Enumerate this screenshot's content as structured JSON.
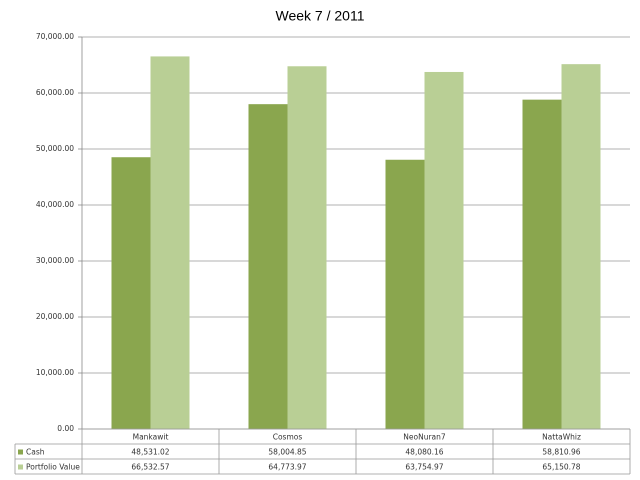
{
  "chart_data": {
    "type": "bar",
    "title": "Week 7 / 2011",
    "categories": [
      "Mankawit",
      "Cosmos",
      "NeoNuran7",
      "NattaWhiz"
    ],
    "series": [
      {
        "name": "Cash",
        "color": "#8aa64e",
        "values": [
          48531.02,
          58004.85,
          48080.16,
          58810.96
        ],
        "value_labels": [
          "48,531.02",
          "58,004.85",
          "48,080.16",
          "58,810.96"
        ]
      },
      {
        "name": "Portfolio Value",
        "color": "#b9cf95",
        "values": [
          66532.57,
          64773.97,
          63754.97,
          65150.78
        ],
        "value_labels": [
          "66,532.57",
          "64,773.97",
          "63,754.97",
          "65,150.78"
        ]
      }
    ],
    "ylim": [
      0,
      70000
    ],
    "yticks": [
      {
        "value": 0,
        "label": "0.00"
      },
      {
        "value": 10000,
        "label": "10,000.00"
      },
      {
        "value": 20000,
        "label": "20,000.00"
      },
      {
        "value": 30000,
        "label": "30,000.00"
      },
      {
        "value": 40000,
        "label": "40,000.00"
      },
      {
        "value": 50000,
        "label": "50,000.00"
      },
      {
        "value": 60000,
        "label": "60,000.00"
      },
      {
        "value": 70000,
        "label": "70,000.00"
      }
    ],
    "grid": true
  }
}
